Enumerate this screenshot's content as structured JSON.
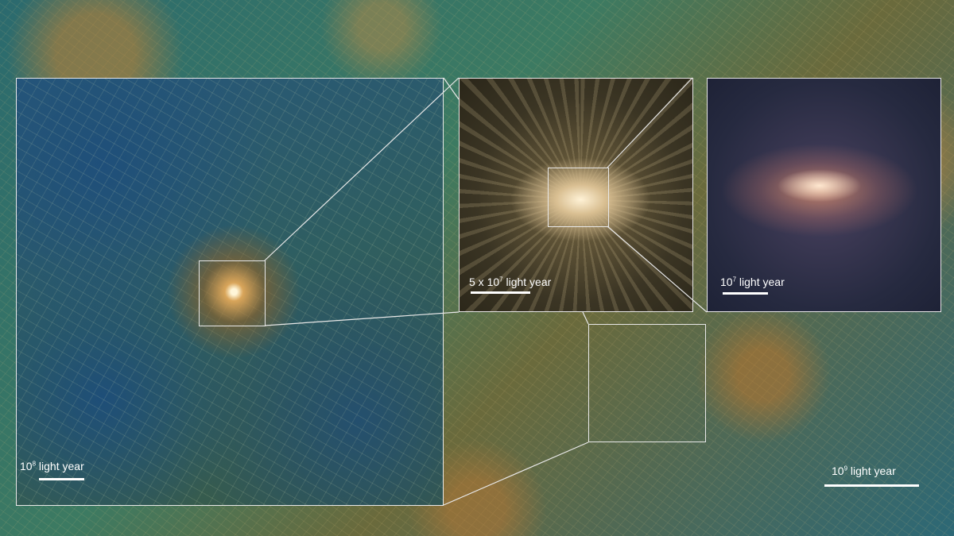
{
  "scale_bars": {
    "panel_large": {
      "base": "10",
      "exp": "8",
      "unit": "light year"
    },
    "panel_mid": {
      "prefix": "5 x 10",
      "exp": "7",
      "unit": "light year"
    },
    "panel_small": {
      "base": "10",
      "exp": "7",
      "unit": "light year"
    },
    "background": {
      "base": "10",
      "exp": "9",
      "unit": "light year"
    }
  },
  "colors": {
    "frame": "#e8e8e8",
    "filament": "#e6d29a",
    "void": "#27577a"
  }
}
